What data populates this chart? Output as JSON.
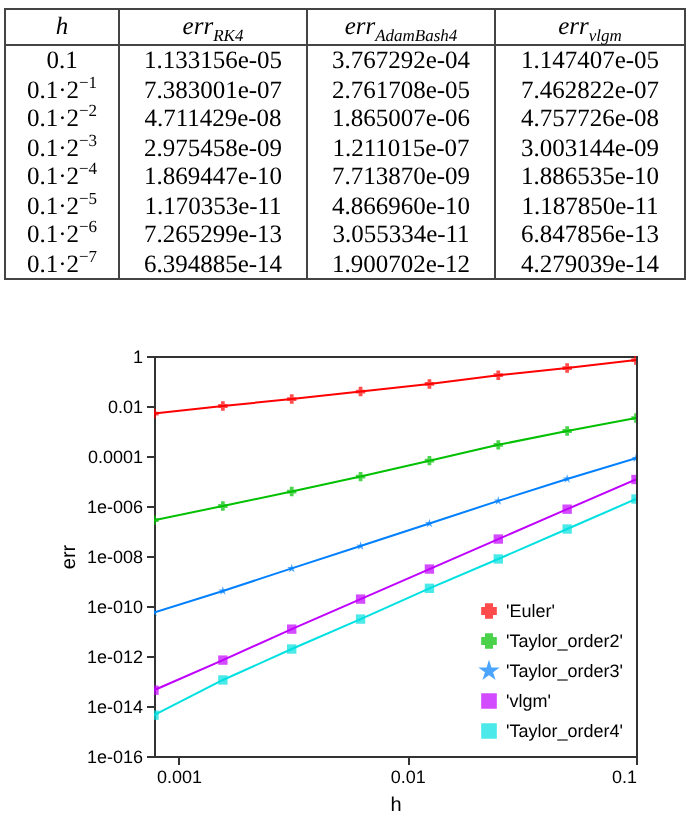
{
  "chart_data": {
    "type": "line",
    "xlabel": "h",
    "ylabel": "err",
    "log": "xy",
    "grid": false,
    "legend": "bottom right",
    "annotations": [
      "h",
      "err$_{RK4}$",
      "err$_{AdamBash4}$",
      "err$_{vlgm}$",
      "0.1",
      "1.133156e-05",
      "3.767292e-04",
      "1.147407e-05",
      "0.1·2$^{−1}$",
      "7.383001e-07",
      "2.761708e-05",
      "7.462822e-07",
      "0.1·2$^{−2}$",
      "4.711429e-08",
      "1.865007e-06",
      "4.757726e-08",
      "0.1·2$^{−3}$",
      "2.975458e-09",
      "1.211015e-07",
      "3.003144e-09",
      "0.1·2$^{−4}$",
      "1.869447e-10",
      "7.713870e-09",
      "1.886535e-10",
      "0.1·2$^{−5}$",
      "1.170353e-11",
      "4.866960e-10",
      "1.187850e-11",
      "0.1·2$^{−6}$",
      "7.265299e-13",
      "3.055334e-11",
      "6.847856e-13",
      "0.1·2$^{−7}$",
      "6.394885e-14",
      "1.900702e-12",
      "4.279039e-14"
    ],
    "x": [
      0.00078125,
      0.0015625,
      0.003125,
      0.00625,
      0.0125,
      0.025,
      0.05,
      0.1
    ],
    "xlim": [
      0.00078125,
      0.1
    ],
    "xticks": [
      0.001,
      0.01,
      0.1
    ],
    "ylim": [
      1e-16,
      1
    ],
    "yticks": [
      1,
      0.01,
      0.0001,
      {
        "value": 1e-06,
        "label": "1e-006"
      },
      {
        "value": 1e-08,
        "label": "1e-008"
      },
      {
        "value": 1e-10,
        "label": "1e-010"
      },
      {
        "value": 1e-12,
        "label": "1e-012"
      },
      {
        "value": 1e-14,
        "label": "1e-014"
      },
      {
        "value": 1e-16,
        "label": "1e-016"
      }
    ],
    "series": [
      {
        "name": "'Euler'",
        "color": "#ff0000",
        "marker": "cross",
        "values": [
          0.005,
          0.01,
          0.019,
          0.038,
          0.076,
          0.17,
          0.33,
          0.69
        ]
      },
      {
        "name": "'Taylor_order2'",
        "color": "#00c000",
        "marker": "cross",
        "values": [
          2.7e-07,
          1e-06,
          3.8e-06,
          1.5e-05,
          6.5e-05,
          0.00028,
          0.001,
          0.0033
        ]
      },
      {
        "name": "'Taylor_order3'",
        "color": "#0080ff",
        "marker": "star",
        "values": [
          5.5e-11,
          4e-10,
          3.2e-09,
          2.5e-08,
          2e-07,
          1.6e-06,
          1.2e-05,
          8.1e-05
        ]
      },
      {
        "name": "'vlgm'",
        "color": "#c000ff",
        "marker": "square",
        "values": [
          4.279039e-14,
          6.847856e-13,
          1.18785e-11,
          1.886535e-10,
          3.003144e-09,
          4.757726e-08,
          7.462822e-07,
          1.147407e-05
        ]
      },
      {
        "name": "'Taylor_order4'",
        "color": "#00e0e0",
        "marker": "square",
        "values": [
          4.3e-15,
          1.1e-13,
          1.9e-12,
          3e-11,
          5.1e-10,
          7.6e-09,
          1.2e-07,
          1.9e-06
        ]
      }
    ]
  }
}
